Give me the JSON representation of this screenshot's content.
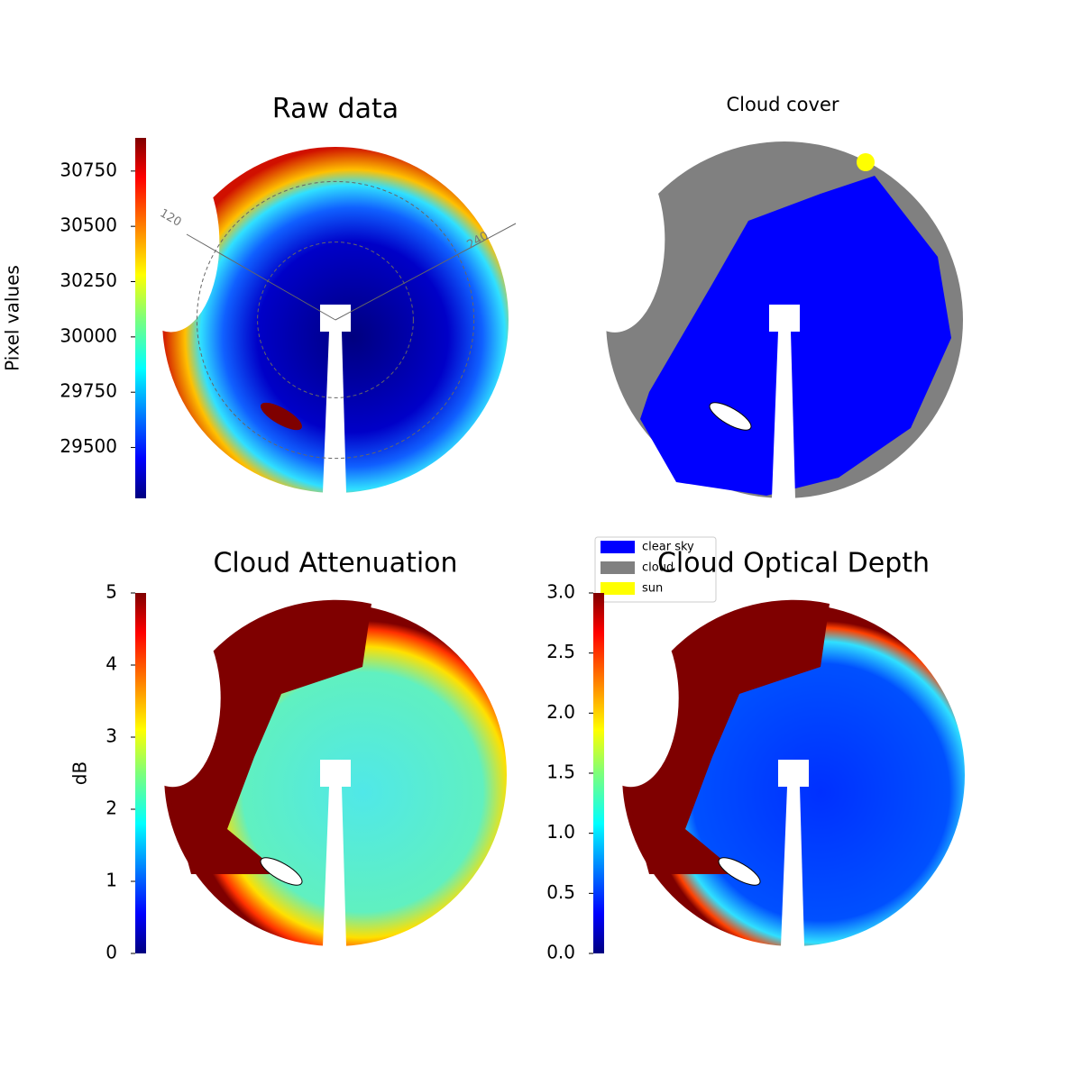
{
  "chart_data": [
    {
      "type": "image",
      "title": "Raw data",
      "colormap": "jet",
      "colorbar_label": "Pixel values",
      "ylim": [
        29270,
        30900
      ],
      "yticks": [
        29500,
        29750,
        30000,
        30250,
        30500,
        30750
      ],
      "annotations": [
        "120",
        "240"
      ]
    },
    {
      "type": "image",
      "title": "Cloud cover",
      "legend": [
        {
          "name": "clear sky",
          "color": "#0000ff"
        },
        {
          "name": "cloud",
          "color": "#808080"
        },
        {
          "name": "sun",
          "color": "#ffff00"
        }
      ]
    },
    {
      "type": "image",
      "title": "Cloud Attenuation",
      "colormap": "jet",
      "colorbar_label": "dB",
      "ylim": [
        0,
        5
      ],
      "yticks": [
        0,
        1,
        2,
        3,
        4,
        5
      ]
    },
    {
      "type": "image",
      "title": "Cloud Optical Depth",
      "colormap": "jet",
      "ylim": [
        0,
        3
      ],
      "yticks": [
        {
          "value": 0,
          "label": "0.0"
        },
        0.5,
        {
          "value": 1,
          "label": "1.0"
        },
        1.5,
        {
          "value": 2,
          "label": "2.0"
        },
        2.5,
        {
          "value": 3,
          "label": "3.0"
        }
      ]
    }
  ]
}
